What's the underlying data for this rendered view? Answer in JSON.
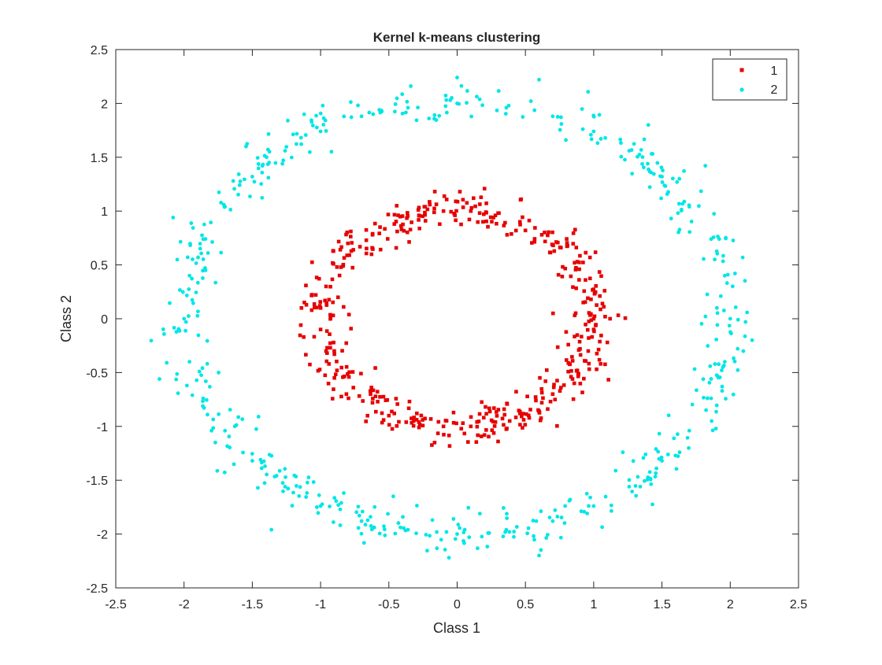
{
  "chart_data": {
    "type": "scatter",
    "title": "Kernel k-means clustering",
    "xlabel": "Class 1",
    "ylabel": "Class 2",
    "xlim": [
      -2.5,
      2.5
    ],
    "ylim": [
      -2.5,
      2.5
    ],
    "xticks": [
      "-2.5",
      "-2",
      "-1.5",
      "-1",
      "-0.5",
      "0",
      "0.5",
      "1",
      "1.5",
      "2",
      "2.5"
    ],
    "yticks": [
      "-2.5",
      "-2",
      "-1.5",
      "-1",
      "-0.5",
      "0",
      "0.5",
      "1",
      "1.5",
      "2",
      "2.5"
    ],
    "grid": false,
    "legend_position": "top-right",
    "series": [
      {
        "name": "1",
        "color": "#e60000",
        "marker": "square",
        "distribution": "noisy ring centered at origin, radius about 1.0, noise about 0.08",
        "points": [
          [
            1.0,
            0.0
          ],
          [
            0.98,
            0.18
          ],
          [
            0.94,
            0.36
          ],
          [
            0.86,
            0.52
          ],
          [
            0.76,
            0.66
          ],
          [
            0.62,
            0.78
          ],
          [
            0.46,
            0.9
          ],
          [
            0.28,
            0.96
          ],
          [
            0.1,
            1.0
          ],
          [
            -0.1,
            1.0
          ],
          [
            -0.28,
            0.96
          ],
          [
            -0.46,
            0.88
          ],
          [
            -0.62,
            0.78
          ],
          [
            -0.76,
            0.64
          ],
          [
            -0.88,
            0.48
          ],
          [
            -0.96,
            0.3
          ],
          [
            -1.0,
            0.1
          ],
          [
            -1.0,
            -0.1
          ],
          [
            -0.96,
            -0.3
          ],
          [
            -0.88,
            -0.48
          ],
          [
            -0.76,
            -0.64
          ],
          [
            -0.62,
            -0.78
          ],
          [
            -0.46,
            -0.88
          ],
          [
            -0.28,
            -0.96
          ],
          [
            -0.1,
            -1.0
          ],
          [
            0.1,
            -1.0
          ],
          [
            0.28,
            -0.96
          ],
          [
            0.46,
            -0.88
          ],
          [
            0.62,
            -0.78
          ],
          [
            0.76,
            -0.64
          ],
          [
            0.88,
            -0.48
          ],
          [
            0.96,
            -0.3
          ],
          [
            1.0,
            -0.1
          ],
          [
            1.08,
            0.26
          ],
          [
            1.12,
            0.0
          ],
          [
            1.1,
            -0.22
          ],
          [
            0.02,
            1.18
          ],
          [
            0.3,
            -1.14
          ],
          [
            -1.14,
            0.1
          ],
          [
            0.6,
            -0.86
          ],
          [
            0.12,
            1.12
          ],
          [
            -0.5,
            -0.9
          ],
          [
            0.5,
            0.82
          ],
          [
            -0.8,
            0.7
          ],
          [
            0.7,
            -0.7
          ],
          [
            0.2,
            -1.08
          ],
          [
            -0.2,
            1.06
          ],
          [
            0.9,
            -0.28
          ],
          [
            -0.9,
            -0.3
          ]
        ]
      },
      {
        "name": "2",
        "color": "#00e6e6",
        "marker": "circle",
        "distribution": "noisy ring centered at origin, radius about 2.0, noise about 0.1",
        "points": [
          [
            2.0,
            0.0
          ],
          [
            1.96,
            0.4
          ],
          [
            1.86,
            0.74
          ],
          [
            1.7,
            1.04
          ],
          [
            1.5,
            1.32
          ],
          [
            1.26,
            1.56
          ],
          [
            1.0,
            1.74
          ],
          [
            0.7,
            1.88
          ],
          [
            0.36,
            1.96
          ],
          [
            0.0,
            2.0
          ],
          [
            -0.36,
            1.96
          ],
          [
            -0.7,
            1.88
          ],
          [
            -1.0,
            1.74
          ],
          [
            -1.26,
            1.56
          ],
          [
            -1.5,
            1.32
          ],
          [
            -1.7,
            1.04
          ],
          [
            -1.86,
            0.74
          ],
          [
            -1.96,
            0.4
          ],
          [
            -2.0,
            0.0
          ],
          [
            -1.96,
            -0.4
          ],
          [
            -1.86,
            -0.74
          ],
          [
            -1.7,
            -1.04
          ],
          [
            -1.5,
            -1.32
          ],
          [
            -1.26,
            -1.56
          ],
          [
            -1.0,
            -1.74
          ],
          [
            -0.7,
            -1.88
          ],
          [
            -0.36,
            -1.96
          ],
          [
            0.0,
            -2.0
          ],
          [
            0.36,
            -1.96
          ],
          [
            0.7,
            -1.88
          ],
          [
            1.0,
            -1.74
          ],
          [
            1.26,
            -1.56
          ],
          [
            1.5,
            -1.32
          ],
          [
            1.7,
            -1.04
          ],
          [
            1.86,
            -0.74
          ],
          [
            1.96,
            -0.4
          ],
          [
            -2.18,
            -0.56
          ],
          [
            0.0,
            2.24
          ],
          [
            0.6,
            2.22
          ],
          [
            -0.06,
            -2.22
          ],
          [
            0.6,
            -2.2
          ],
          [
            2.16,
            -0.2
          ],
          [
            -2.08,
            0.94
          ],
          [
            1.38,
            -1.26
          ],
          [
            -1.36,
            -1.96
          ],
          [
            1.4,
            1.8
          ],
          [
            -1.24,
            1.84
          ]
        ]
      }
    ]
  }
}
